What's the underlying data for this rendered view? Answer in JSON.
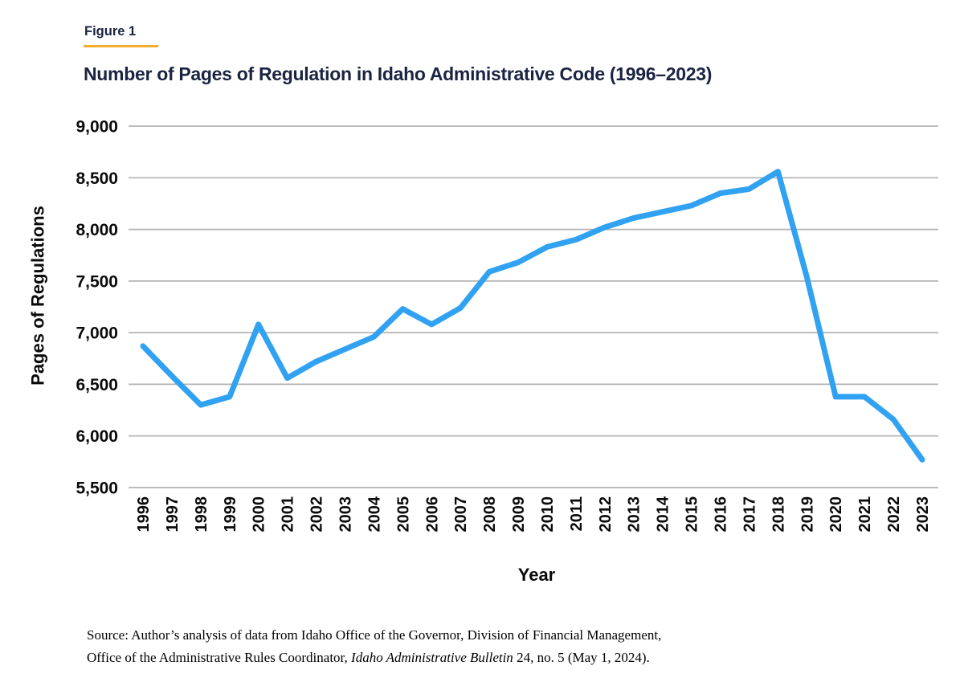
{
  "header": {
    "figure_label": "Figure 1",
    "title": "Number of Pages of Regulation in Idaho Administrative Code (1996–2023)"
  },
  "chart_data": {
    "type": "line",
    "title": "Number of Pages of Regulation in Idaho Administrative Code (1996–2023)",
    "xlabel": "Year",
    "ylabel": "Pages of Regulations",
    "categories": [
      "1996",
      "1997",
      "1998",
      "1999",
      "2000",
      "2001",
      "2002",
      "2003",
      "2004",
      "2005",
      "2006",
      "2007",
      "2008",
      "2009",
      "2010",
      "2011",
      "2012",
      "2013",
      "2014",
      "2015",
      "2016",
      "2017",
      "2018",
      "2019",
      "2020",
      "2021",
      "2022",
      "2023"
    ],
    "values": [
      6870,
      6580,
      6300,
      6380,
      7080,
      6560,
      6720,
      6840,
      6960,
      7230,
      7080,
      7240,
      7590,
      7680,
      7830,
      7900,
      8020,
      8110,
      8170,
      8230,
      8350,
      8390,
      8560,
      7540,
      6380,
      6380,
      6160,
      5770
    ],
    "ylim": [
      5500,
      9000
    ],
    "y_ticks": [
      {
        "value": 5500,
        "label": "5,500"
      },
      {
        "value": 6000,
        "label": "6,000"
      },
      {
        "value": 6500,
        "label": "6,500"
      },
      {
        "value": 7000,
        "label": "7,000"
      },
      {
        "value": 7500,
        "label": "7,500"
      },
      {
        "value": 8000,
        "label": "8,000"
      },
      {
        "value": 8500,
        "label": "8,500"
      },
      {
        "value": 9000,
        "label": "9,000"
      }
    ],
    "grid": true,
    "legend_position": "none",
    "line_color": "#31a2f2"
  },
  "source": {
    "line1": "Source: Author’s analysis of data from Idaho Office of the Governor, Division of Financial Management,",
    "line2_prefix": "Office of the Administrative Rules Coordinator, ",
    "line2_italic": "Idaho Administrative Bulletin",
    "line2_suffix": " 24, no. 5 (May 1, 2024)."
  },
  "colors": {
    "navy": "#1a2342",
    "gold": "#f4ad2b",
    "line_blue": "#31a2f2",
    "gridline": "#b2b2b2",
    "tick_text": "#0a0a0a"
  }
}
